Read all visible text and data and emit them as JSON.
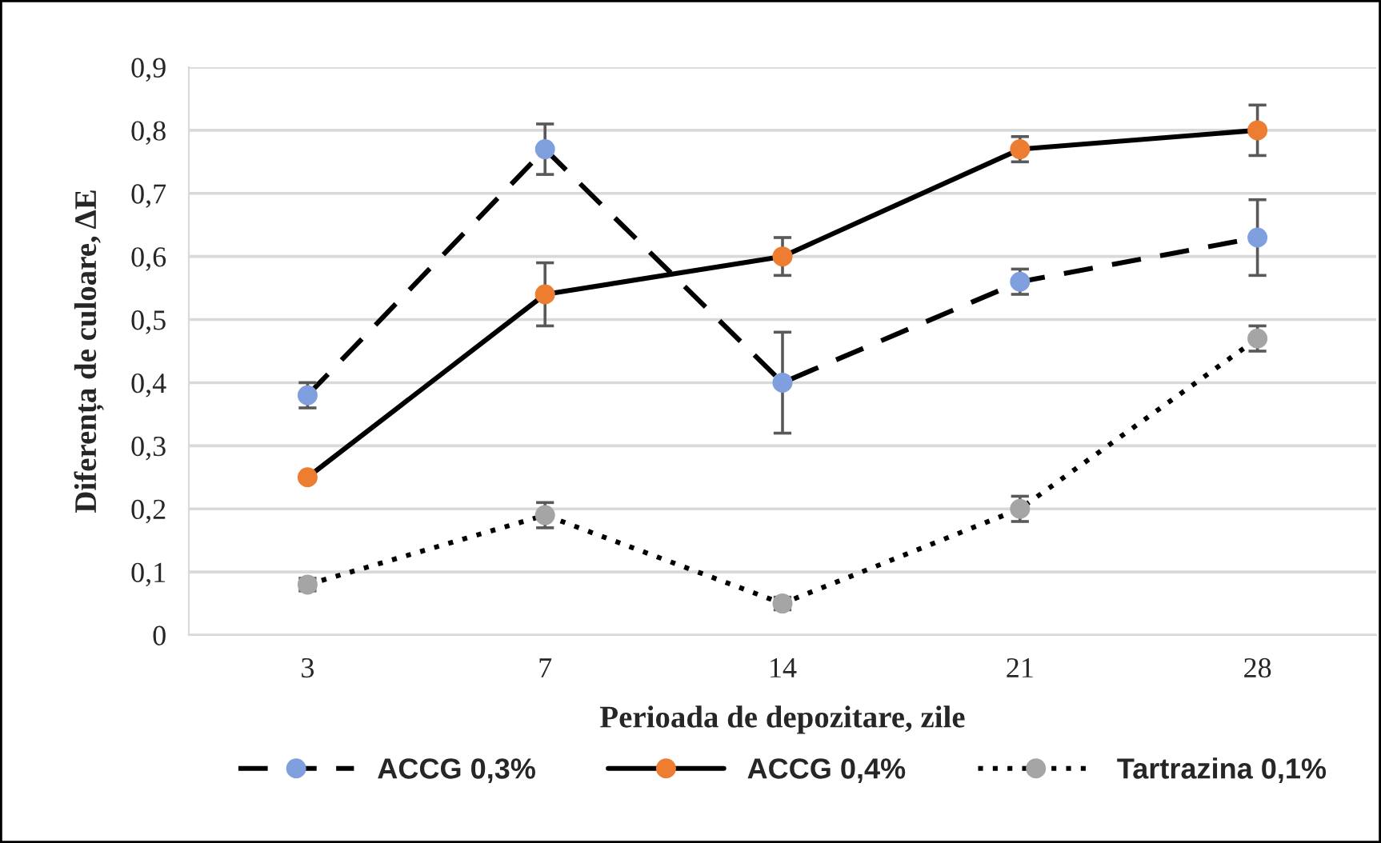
{
  "chart_data": {
    "type": "line",
    "xlabel": "Perioada de depozitare, zile",
    "ylabel": "Diferența de culoare, ΔE",
    "categories": [
      "3",
      "7",
      "14",
      "21",
      "28"
    ],
    "series": [
      {
        "name": "ACCG 0,3%",
        "color": "#7f9fdf",
        "line_style": "dashed",
        "values": [
          0.38,
          0.77,
          0.4,
          0.56,
          0.63
        ],
        "errors": [
          0.02,
          0.04,
          0.08,
          0.02,
          0.06
        ]
      },
      {
        "name": "ACCG 0,4%",
        "color": "#ed7d31",
        "line_style": "solid",
        "values": [
          0.25,
          0.54,
          0.6,
          0.77,
          0.8
        ],
        "errors": [
          null,
          0.05,
          0.03,
          0.02,
          0.04
        ]
      },
      {
        "name": "Tartrazina 0,1%",
        "color": "#a5a5a5",
        "line_style": "dotted",
        "values": [
          0.08,
          0.19,
          0.05,
          0.2,
          0.47
        ],
        "errors": [
          0.01,
          0.02,
          0.01,
          0.02,
          0.02
        ]
      }
    ],
    "ylim": [
      0,
      0.9
    ],
    "yticks": [
      0,
      {
        "value": 0.1,
        "label": "0,1"
      },
      {
        "value": 0.2,
        "label": "0,2"
      },
      {
        "value": 0.3,
        "label": "0,3"
      },
      {
        "value": 0.4,
        "label": "0,4"
      },
      {
        "value": 0.5,
        "label": "0,5"
      },
      {
        "value": 0.6,
        "label": "0,6"
      },
      {
        "value": 0.7,
        "label": "0,7"
      },
      {
        "value": 0.8,
        "label": "0,8"
      },
      {
        "value": 0.9,
        "label": "0,9"
      }
    ],
    "grid": "y",
    "legend": "bottom",
    "marker": "circle"
  }
}
